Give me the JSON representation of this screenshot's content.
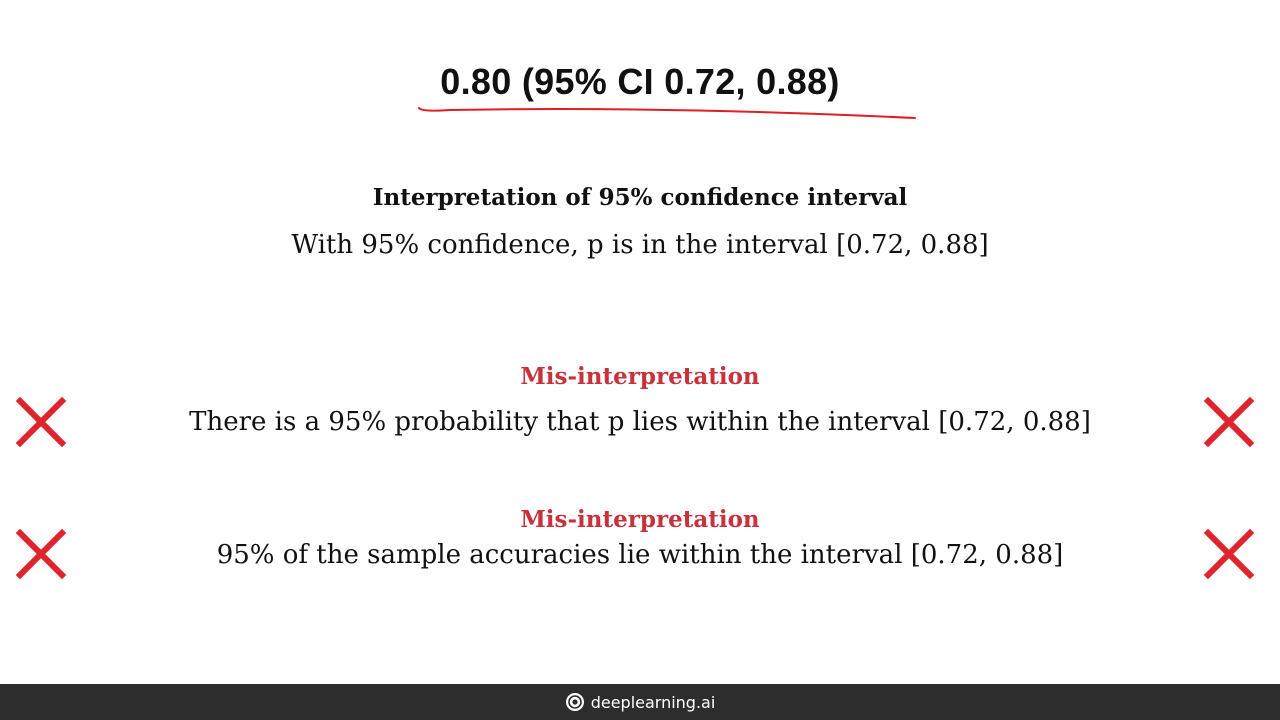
{
  "slide": {
    "headline": "0.80 (95% CI 0.72, 0.88)",
    "annotation_color": "#e01e24",
    "interpretation": {
      "title": "Interpretation of 95% confidence interval",
      "text": "With 95% confidence, p is in the interval [0.72, 0.88]"
    },
    "misinterpretations": [
      {
        "title": "Mis-interpretation",
        "text": "There is a 95% probability that p lies within the interval [0.72, 0.88]",
        "icon": "cross-icon"
      },
      {
        "title": "Mis-interpretation",
        "text": "95% of the sample accuracies lie within the interval [0.72, 0.88]",
        "icon": "cross-icon"
      }
    ],
    "accent_color": "#c8323c",
    "cross_color": "#e0242e"
  },
  "footer": {
    "brand": "deeplearning.ai",
    "logo_icon": "deeplearning-logo-icon",
    "background": "#2d2d2d"
  }
}
